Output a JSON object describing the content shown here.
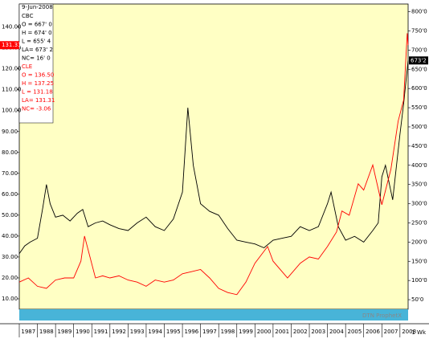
{
  "chart_data": {
    "type": "line",
    "date": "9-Jun-2008",
    "watermark": "DTN ProphetX",
    "period": "1 Wk",
    "xlim": [
      1987,
      2008.45
    ],
    "xticks": [
      1987,
      1988,
      1989,
      1990,
      1991,
      1992,
      1993,
      1994,
      1995,
      1996,
      1997,
      1998,
      1999,
      2000,
      2001,
      2002,
      2003,
      2004,
      2005,
      2006,
      2007,
      2008
    ],
    "ylim": [
      5,
      151
    ],
    "yticks": [
      {
        "value": 10,
        "label": "10.00"
      },
      {
        "value": 20,
        "label": "20.00"
      },
      {
        "value": 30,
        "label": "30.00"
      },
      {
        "value": 40,
        "label": "40.00"
      },
      {
        "value": 50,
        "label": "50.00"
      },
      {
        "value": 60,
        "label": "60.00"
      },
      {
        "value": 70,
        "label": "70.00"
      },
      {
        "value": 80,
        "label": "80.00"
      },
      {
        "value": 90,
        "label": "90.00"
      },
      {
        "value": 100,
        "label": "100.00"
      },
      {
        "value": 110,
        "label": "110.00"
      },
      {
        "value": 120,
        "label": "120.00"
      },
      {
        "value": 130,
        "label": "130.00"
      },
      {
        "value": 140,
        "label": "140.00"
      }
    ],
    "y2lim": [
      25,
      820
    ],
    "y2ticks": [
      {
        "value": 50,
        "label": "50'0"
      },
      {
        "value": 100,
        "label": "100'0"
      },
      {
        "value": 150,
        "label": "150'0"
      },
      {
        "value": 200,
        "label": "200'0"
      },
      {
        "value": 250,
        "label": "250'0"
      },
      {
        "value": 300,
        "label": "300'0"
      },
      {
        "value": 350,
        "label": "350'0"
      },
      {
        "value": 400,
        "label": "400'0"
      },
      {
        "value": 450,
        "label": "450'0"
      },
      {
        "value": 500,
        "label": "500'0"
      },
      {
        "value": 550,
        "label": "550'0"
      },
      {
        "value": 600,
        "label": "600'0"
      },
      {
        "value": 650,
        "label": "650'0"
      },
      {
        "value": 700,
        "label": "700'0"
      },
      {
        "value": 750,
        "label": "750'0"
      },
      {
        "value": 800,
        "label": "800'0"
      }
    ],
    "series": [
      {
        "name": "CBC",
        "color": "#000000",
        "axis": "y2",
        "last_label": "673'2",
        "quote_lines": [
          "O = 667' 0",
          "H = 674' 0",
          "L = 655' 4",
          "LA= 673' 2",
          "NC= 16' 0"
        ],
        "x": [
          1987,
          1987.3,
          1987.6,
          1988,
          1988.3,
          1988.5,
          1988.7,
          1989,
          1989.4,
          1989.8,
          1990.2,
          1990.5,
          1990.8,
          1991.2,
          1991.6,
          1992,
          1992.5,
          1993,
          1993.5,
          1994,
          1994.5,
          1995,
          1995.5,
          1996,
          1996.3,
          1996.6,
          1997,
          1997.5,
          1998,
          1998.5,
          1999,
          1999.5,
          2000,
          2000.5,
          2001,
          2001.5,
          2002,
          2002.5,
          2003,
          2003.5,
          2004,
          2004.2,
          2004.6,
          2005,
          2005.5,
          2006,
          2006.5,
          2006.8,
          2007,
          2007.2,
          2007.6,
          2008,
          2008.2,
          2008.45
        ],
        "values": [
          170,
          190,
          200,
          210,
          290,
          350,
          300,
          265,
          270,
          255,
          275,
          285,
          240,
          250,
          255,
          245,
          235,
          230,
          250,
          265,
          240,
          230,
          260,
          330,
          550,
          400,
          300,
          280,
          270,
          235,
          205,
          200,
          195,
          185,
          205,
          210,
          215,
          240,
          230,
          240,
          300,
          330,
          240,
          205,
          215,
          200,
          230,
          250,
          370,
          400,
          310,
          480,
          560,
          673
        ]
      },
      {
        "name": "CLE",
        "color": "#ff0000",
        "axis": "y",
        "last_label": "131.31",
        "quote_lines": [
          "O = 136.50",
          "H = 137.25",
          "L = 131.18",
          "LA= 131.31",
          "NC= -3.06"
        ],
        "x": [
          1987,
          1987.5,
          1988,
          1988.5,
          1989,
          1989.5,
          1990,
          1990.4,
          1990.6,
          1990.9,
          1991.2,
          1991.6,
          1992,
          1992.5,
          1993,
          1993.5,
          1994,
          1994.5,
          1995,
          1995.5,
          1996,
          1996.5,
          1997,
          1997.5,
          1998,
          1998.5,
          1999,
          1999.5,
          2000,
          2000.7,
          2001,
          2001.8,
          2002.5,
          2003,
          2003.5,
          2004,
          2004.5,
          2004.8,
          2005.2,
          2005.7,
          2006,
          2006.5,
          2007,
          2007.5,
          2007.9,
          2008.2,
          2008.4,
          2008.45
        ],
        "values": [
          18,
          20,
          16,
          15,
          19,
          20,
          20,
          28,
          40,
          30,
          20,
          21,
          20,
          21,
          19,
          18,
          16,
          19,
          18,
          19,
          22,
          23,
          24,
          20,
          15,
          13,
          12,
          18,
          27,
          35,
          28,
          20,
          27,
          30,
          29,
          35,
          42,
          52,
          50,
          65,
          62,
          74,
          55,
          72,
          95,
          105,
          137,
          131.31
        ]
      }
    ]
  }
}
